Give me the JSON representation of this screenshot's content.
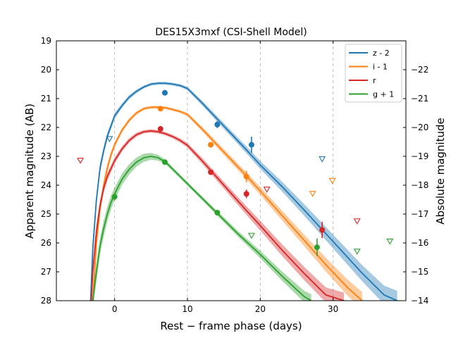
{
  "chart_data": {
    "type": "line",
    "title": "DES15X3mxf (CSI-Shell Model)",
    "xlabel": "Rest − frame phase (days)",
    "ylabel": "Apparent magnitude (AB)",
    "ylabel_right": "Absolute magnitude",
    "xlim": [
      -8,
      40
    ],
    "ylim": [
      28,
      19
    ],
    "ylim_right": [
      -14,
      -23
    ],
    "x_ticks": [
      0,
      10,
      20,
      30
    ],
    "x_tick_labels": [
      "0",
      "10",
      "20",
      "30"
    ],
    "y_ticks": [
      19,
      20,
      21,
      22,
      23,
      24,
      25,
      26,
      27,
      28
    ],
    "y_tick_labels": [
      "19",
      "20",
      "21",
      "22",
      "23",
      "24",
      "25",
      "26",
      "27",
      "28"
    ],
    "y_right_ticks": [
      -22,
      -21,
      -20,
      -19,
      -18,
      -17,
      -16,
      -15,
      -14
    ],
    "y_right_tick_labels": [
      "−22",
      "−21",
      "−20",
      "−19",
      "−18",
      "−17",
      "−16",
      "−15",
      "−14"
    ],
    "grid": "dashed vertical at x ticks",
    "legend_position": "top-right",
    "series": [
      {
        "name": "z - 2",
        "color": "#1f77b4",
        "model_x": [
          -3.3,
          -3.0,
          -2.5,
          -2.0,
          -1.5,
          -1.0,
          0.0,
          1.0,
          2.0,
          3.0,
          4.0,
          5.0,
          6.0,
          7.0,
          8.0,
          9.0,
          10.0,
          12.0,
          15.0,
          18.0,
          20.0,
          23.0,
          26.0,
          30.0,
          34.0,
          37.0,
          38.8
        ],
        "model_y": [
          28.0,
          26.2,
          24.5,
          23.4,
          22.8,
          22.3,
          21.6,
          21.25,
          20.95,
          20.75,
          20.6,
          20.5,
          20.47,
          20.47,
          20.5,
          20.55,
          20.65,
          21.15,
          21.95,
          22.75,
          23.3,
          24.05,
          24.85,
          25.95,
          27.05,
          27.8,
          28.0
        ],
        "band_width": [
          0.3,
          0.25,
          0.2,
          0.18,
          0.15,
          0.12,
          0.1,
          0.08,
          0.07,
          0.06,
          0.05,
          0.05,
          0.05,
          0.05,
          0.05,
          0.05,
          0.06,
          0.08,
          0.1,
          0.12,
          0.14,
          0.17,
          0.2,
          0.24,
          0.28,
          0.32,
          0.34
        ],
        "detections": [
          {
            "x": 6.9,
            "y": 20.8,
            "err": 0.08
          },
          {
            "x": 14.1,
            "y": 21.9,
            "err": 0.12
          },
          {
            "x": 18.8,
            "y": 22.6,
            "err": 0.28
          }
        ],
        "upper_limits": [
          {
            "x": -0.7,
            "y": 22.4
          },
          {
            "x": 28.5,
            "y": 23.1
          }
        ]
      },
      {
        "name": "i - 1",
        "color": "#ff7f0e",
        "model_x": [
          -3.0,
          -2.5,
          -2.0,
          -1.5,
          -1.0,
          -0.5,
          0.0,
          1.0,
          2.0,
          3.0,
          4.0,
          5.0,
          6.0,
          7.0,
          8.0,
          9.0,
          10.0,
          12.0,
          15.0,
          18.0,
          20.0,
          23.0,
          26.0,
          29.0,
          32.0,
          34.0
        ],
        "model_y": [
          28.0,
          26.0,
          24.8,
          24.0,
          23.4,
          22.95,
          22.6,
          22.1,
          21.75,
          21.5,
          21.35,
          21.3,
          21.3,
          21.32,
          21.38,
          21.45,
          21.55,
          22.05,
          22.85,
          23.65,
          24.2,
          25.05,
          25.9,
          26.75,
          27.55,
          28.0
        ],
        "band_width": [
          0.3,
          0.25,
          0.2,
          0.18,
          0.15,
          0.12,
          0.1,
          0.08,
          0.07,
          0.06,
          0.05,
          0.05,
          0.05,
          0.05,
          0.05,
          0.05,
          0.06,
          0.08,
          0.1,
          0.12,
          0.14,
          0.17,
          0.2,
          0.24,
          0.28,
          0.3
        ],
        "detections": [
          {
            "x": 6.3,
            "y": 21.35,
            "err": 0.06
          },
          {
            "x": 13.2,
            "y": 22.6,
            "err": 0.08
          },
          {
            "x": 18.1,
            "y": 23.7,
            "err": 0.2
          }
        ],
        "upper_limits": [
          {
            "x": 27.2,
            "y": 24.3
          },
          {
            "x": 29.9,
            "y": 23.85
          }
        ]
      },
      {
        "name": "r",
        "color": "#d62728",
        "model_x": [
          -3.2,
          -3.0,
          -2.5,
          -2.0,
          -1.5,
          -1.0,
          0.0,
          1.0,
          2.0,
          3.0,
          4.0,
          5.0,
          6.0,
          7.0,
          8.0,
          9.0,
          10.0,
          12.0,
          15.0,
          18.0,
          20.0,
          23.0,
          26.0,
          29.0,
          31.5
        ],
        "model_y": [
          28.0,
          27.0,
          25.6,
          24.7,
          24.1,
          23.7,
          23.15,
          22.75,
          22.45,
          22.25,
          22.15,
          22.12,
          22.15,
          22.22,
          22.32,
          22.45,
          22.62,
          23.15,
          24.0,
          24.85,
          25.4,
          26.25,
          27.05,
          27.8,
          28.0
        ],
        "band_width": [
          0.3,
          0.28,
          0.24,
          0.2,
          0.17,
          0.14,
          0.11,
          0.09,
          0.08,
          0.07,
          0.06,
          0.06,
          0.06,
          0.06,
          0.06,
          0.07,
          0.08,
          0.1,
          0.12,
          0.15,
          0.17,
          0.2,
          0.23,
          0.26,
          0.28
        ],
        "detections": [
          {
            "x": 6.3,
            "y": 22.05,
            "err": 0.06
          },
          {
            "x": 13.2,
            "y": 23.55,
            "err": 0.08
          },
          {
            "x": 18.1,
            "y": 24.3,
            "err": 0.15
          },
          {
            "x": 28.5,
            "y": 25.55,
            "err": 0.28
          }
        ],
        "upper_limits": [
          {
            "x": -4.7,
            "y": 23.15
          },
          {
            "x": 20.9,
            "y": 24.15
          },
          {
            "x": 33.3,
            "y": 25.25
          }
        ]
      },
      {
        "name": "g + 1",
        "color": "#2ca02c",
        "model_x": [
          -3.0,
          -2.5,
          -2.0,
          -1.5,
          -1.0,
          -0.5,
          0.0,
          1.0,
          2.0,
          3.0,
          4.0,
          5.0,
          6.0,
          7.0,
          8.0,
          10.0,
          12.0,
          14.0,
          17.0,
          20.0,
          23.0,
          26.0,
          27.0
        ],
        "model_y": [
          28.0,
          27.0,
          26.1,
          25.5,
          25.0,
          24.6,
          24.3,
          23.8,
          23.45,
          23.2,
          23.05,
          23.0,
          23.05,
          23.2,
          23.45,
          23.95,
          24.45,
          24.95,
          25.7,
          26.4,
          27.15,
          27.85,
          28.0
        ],
        "band_width": [
          0.35,
          0.32,
          0.3,
          0.28,
          0.26,
          0.24,
          0.22,
          0.2,
          0.18,
          0.16,
          0.14,
          0.12,
          0.1,
          0.08,
          0.07,
          0.07,
          0.07,
          0.08,
          0.1,
          0.13,
          0.16,
          0.2,
          0.22
        ],
        "detections": [
          {
            "x": 0.0,
            "y": 24.4,
            "err": 0.12
          },
          {
            "x": 6.9,
            "y": 23.2,
            "err": 0.06
          },
          {
            "x": 14.1,
            "y": 24.95,
            "err": 0.08
          },
          {
            "x": 27.8,
            "y": 26.15,
            "err": 0.3
          }
        ],
        "upper_limits": [
          {
            "x": 18.8,
            "y": 25.75
          },
          {
            "x": 33.3,
            "y": 26.3
          },
          {
            "x": 37.8,
            "y": 25.95
          }
        ]
      }
    ]
  }
}
